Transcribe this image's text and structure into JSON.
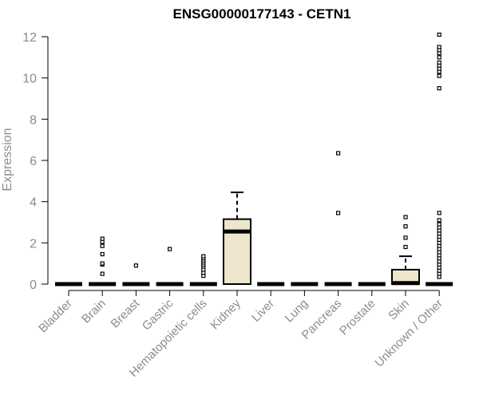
{
  "chart_data": {
    "type": "boxplot",
    "title": "ENSG00000177143 - CETN1",
    "xlabel": "",
    "ylabel": "Expression",
    "ylim": [
      0,
      12
    ],
    "yticks": [
      0,
      2,
      4,
      6,
      8,
      10,
      12
    ],
    "grid": false,
    "legend": "none",
    "colors": {
      "box_fill": "#ede6cd",
      "stroke": "#000000",
      "axis_text": "#8c8c8c"
    },
    "categories": [
      "Bladder",
      "Brain",
      "Breast",
      "Gastric",
      "Hematopoietic cells",
      "Kidney",
      "Liver",
      "Lung",
      "Pancreas",
      "Prostate",
      "Skin",
      "Unknown / Other"
    ],
    "boxes": [
      {
        "category": "Bladder",
        "q1": 0,
        "median": 0,
        "q3": 0,
        "whisker_low": 0,
        "whisker_high": 0,
        "outliers": []
      },
      {
        "category": "Brain",
        "q1": 0,
        "median": 0,
        "q3": 0,
        "whisker_low": 0,
        "whisker_high": 0,
        "outliers": [
          0.5,
          0.95,
          1.0,
          1.45,
          1.85,
          2.05,
          2.2
        ]
      },
      {
        "category": "Breast",
        "q1": 0,
        "median": 0,
        "q3": 0,
        "whisker_low": 0,
        "whisker_high": 0,
        "outliers": [
          0.9
        ]
      },
      {
        "category": "Gastric",
        "q1": 0,
        "median": 0,
        "q3": 0,
        "whisker_low": 0,
        "whisker_high": 0,
        "outliers": [
          1.7
        ]
      },
      {
        "category": "Hematopoietic cells",
        "q1": 0,
        "median": 0,
        "q3": 0,
        "whisker_low": 0,
        "whisker_high": 0,
        "outliers": [
          0.4,
          0.55,
          0.7,
          0.85,
          0.95,
          1.05,
          1.15,
          1.25,
          1.35
        ]
      },
      {
        "category": "Kidney",
        "q1": 0,
        "median": 2.55,
        "q3": 3.15,
        "whisker_low": 0,
        "whisker_high": 4.45,
        "outliers": []
      },
      {
        "category": "Liver",
        "q1": 0,
        "median": 0,
        "q3": 0,
        "whisker_low": 0,
        "whisker_high": 0,
        "outliers": []
      },
      {
        "category": "Lung",
        "q1": 0,
        "median": 0,
        "q3": 0,
        "whisker_low": 0,
        "whisker_high": 0,
        "outliers": []
      },
      {
        "category": "Pancreas",
        "q1": 0,
        "median": 0,
        "q3": 0,
        "whisker_low": 0,
        "whisker_high": 0,
        "outliers": [
          3.45,
          6.35
        ]
      },
      {
        "category": "Prostate",
        "q1": 0,
        "median": 0,
        "q3": 0,
        "whisker_low": 0,
        "whisker_high": 0,
        "outliers": []
      },
      {
        "category": "Skin",
        "q1": 0,
        "median": 0.05,
        "q3": 0.7,
        "whisker_low": 0,
        "whisker_high": 1.35,
        "outliers": [
          1.8,
          2.25,
          2.8,
          3.25
        ]
      },
      {
        "category": "Unknown / Other",
        "q1": 0,
        "median": 0,
        "q3": 0,
        "whisker_low": 0,
        "whisker_high": 0,
        "outliers": [
          0.35,
          0.5,
          0.65,
          0.8,
          0.95,
          1.1,
          1.25,
          1.4,
          1.55,
          1.7,
          1.85,
          2.0,
          2.15,
          2.3,
          2.45,
          2.6,
          2.75,
          2.9,
          3.1,
          3.45,
          9.5,
          10.1,
          10.3,
          10.45,
          10.6,
          10.75,
          11.0,
          11.2,
          11.35,
          11.5,
          12.1
        ]
      }
    ]
  }
}
